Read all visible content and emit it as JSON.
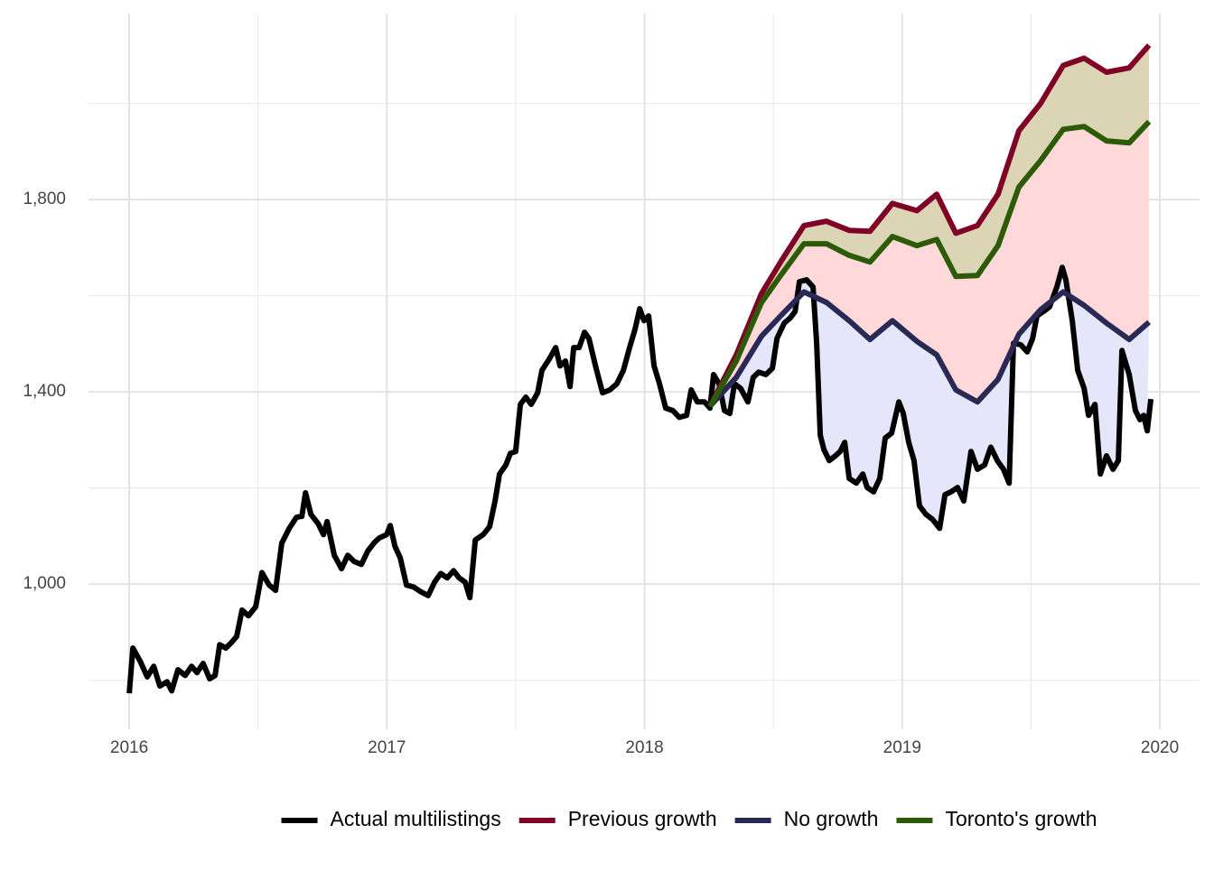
{
  "chart_data": {
    "type": "line",
    "xlim": [
      2015.842,
      2020.154
    ],
    "xticks": [
      2016,
      2017,
      2018,
      2019,
      2020
    ],
    "xminorticks": [
      2016.5,
      2017.5,
      2018.5,
      2019.5
    ],
    "ylim": [
      698,
      2187
    ],
    "yticks": [
      {
        "value": 1000,
        "label": "1,000"
      },
      {
        "value": 1400,
        "label": "1,400"
      },
      {
        "value": 1800,
        "label": "1,800"
      }
    ],
    "yminorticks": [
      800,
      1200,
      1600,
      2000
    ],
    "grid": true,
    "legend": "bottom",
    "series": [
      {
        "name": "Actual multilistings",
        "color": "#000000",
        "x": [
          2016.0,
          2016.014,
          2016.042,
          2016.07,
          2016.095,
          2016.119,
          2016.147,
          2016.165,
          2016.189,
          2016.217,
          2016.242,
          2016.263,
          2016.287,
          2016.312,
          2016.333,
          2016.351,
          2016.375,
          2016.396,
          2016.417,
          2016.438,
          2016.463,
          2016.491,
          2016.515,
          2016.543,
          2016.568,
          2016.592,
          2016.621,
          2016.649,
          2016.67,
          2016.684,
          2016.705,
          2016.733,
          2016.754,
          2016.768,
          2016.796,
          2016.824,
          2016.848,
          2016.873,
          2016.901,
          2016.926,
          2016.954,
          2016.971,
          2016.999,
          2017.013,
          2017.031,
          2017.052,
          2017.076,
          2017.104,
          2017.129,
          2017.16,
          2017.185,
          2017.209,
          2017.234,
          2017.259,
          2017.28,
          2017.304,
          2017.322,
          2017.343,
          2017.374,
          2017.399,
          2017.42,
          2017.437,
          2017.462,
          2017.479,
          2017.5,
          2017.518,
          2017.539,
          2017.56,
          2017.585,
          2017.602,
          2017.63,
          2017.655,
          2017.672,
          2017.693,
          2017.711,
          2017.725,
          2017.746,
          2017.767,
          2017.784,
          2017.812,
          2017.837,
          2017.865,
          2017.893,
          2017.918,
          2017.942,
          2017.963,
          2017.981,
          2017.998,
          2018.016,
          2018.037,
          2018.058,
          2018.082,
          2018.11,
          2018.135,
          2018.163,
          2018.181,
          2018.205,
          2018.233,
          2018.254,
          2018.268,
          2018.289,
          2018.31,
          2018.331,
          2018.349,
          2018.373,
          2018.401,
          2018.422,
          2018.443,
          2018.471,
          2018.496,
          2018.514,
          2018.542,
          2018.566,
          2018.584,
          2018.601,
          2018.629,
          2018.654,
          2018.668,
          2018.682,
          2018.696,
          2018.717,
          2018.741,
          2018.759,
          2018.777,
          2018.794,
          2018.822,
          2018.847,
          2018.864,
          2018.889,
          2018.913,
          2018.934,
          2018.959,
          2018.987,
          2019.004,
          2019.025,
          2019.046,
          2019.067,
          2019.092,
          2019.117,
          2019.145,
          2019.166,
          2019.19,
          2019.215,
          2019.239,
          2019.267,
          2019.292,
          2019.32,
          2019.344,
          2019.369,
          2019.393,
          2019.415,
          2019.432,
          2019.46,
          2019.485,
          2019.506,
          2019.523,
          2019.548,
          2019.572,
          2019.6,
          2019.621,
          2019.635,
          2019.66,
          2019.681,
          2019.706,
          2019.723,
          2019.748,
          2019.769,
          2019.793,
          2019.818,
          2019.839,
          2019.853,
          2019.881,
          2019.905,
          2019.923,
          2019.937,
          2019.951,
          2019.965
        ],
        "values": [
          773,
          867,
          840,
          807,
          829,
          788,
          797,
          778,
          822,
          810,
          829,
          816,
          835,
          803,
          810,
          874,
          867,
          878,
          891,
          946,
          934,
          953,
          1024,
          998,
          987,
          1085,
          1116,
          1139,
          1141,
          1190,
          1145,
          1126,
          1103,
          1130,
          1060,
          1032,
          1060,
          1047,
          1041,
          1069,
          1088,
          1096,
          1103,
          1122,
          1079,
          1054,
          998,
          994,
          985,
          976,
          1004,
          1022,
          1013,
          1028,
          1013,
          1004,
          972,
          1092,
          1103,
          1120,
          1173,
          1229,
          1248,
          1272,
          1276,
          1374,
          1389,
          1374,
          1398,
          1445,
          1468,
          1492,
          1454,
          1464,
          1411,
          1492,
          1492,
          1524,
          1511,
          1449,
          1398,
          1404,
          1417,
          1445,
          1492,
          1530,
          1573,
          1548,
          1558,
          1454,
          1417,
          1366,
          1361,
          1347,
          1351,
          1404,
          1379,
          1379,
          1366,
          1436,
          1417,
          1361,
          1355,
          1417,
          1407,
          1379,
          1430,
          1441,
          1436,
          1449,
          1511,
          1543,
          1554,
          1567,
          1629,
          1633,
          1618,
          1501,
          1310,
          1280,
          1257,
          1267,
          1276,
          1295,
          1220,
          1210,
          1229,
          1201,
          1192,
          1220,
          1304,
          1314,
          1379,
          1355,
          1295,
          1257,
          1163,
          1145,
          1135,
          1116,
          1186,
          1192,
          1201,
          1173,
          1276,
          1239,
          1248,
          1285,
          1257,
          1239,
          1210,
          1501,
          1498,
          1483,
          1511,
          1558,
          1567,
          1577,
          1618,
          1659,
          1633,
          1548,
          1445,
          1407,
          1351,
          1374,
          1229,
          1267,
          1239,
          1257,
          1486,
          1436,
          1361,
          1342,
          1351,
          1319,
          1385
        ]
      },
      {
        "name": "Previous growth",
        "color": "#800026",
        "fill": "#dbd4b5",
        "x": [
          2018.254,
          2018.356,
          2018.454,
          2018.528,
          2018.619,
          2018.706,
          2018.794,
          2018.875,
          2018.962,
          2019.057,
          2019.134,
          2019.208,
          2019.292,
          2019.372,
          2019.453,
          2019.537,
          2019.625,
          2019.706,
          2019.793,
          2019.881,
          2019.958
        ],
        "values": [
          1370,
          1477,
          1605,
          1670,
          1746,
          1755,
          1736,
          1734,
          1792,
          1777,
          1811,
          1730,
          1746,
          1811,
          1943,
          2000,
          2079,
          2094,
          2065,
          2074,
          2121
        ]
      },
      {
        "name": "No growth",
        "color": "#2a2955",
        "fill": "#e6e6fb",
        "x": [
          2018.254,
          2018.356,
          2018.454,
          2018.528,
          2018.619,
          2018.706,
          2018.794,
          2018.875,
          2018.962,
          2019.057,
          2019.134,
          2019.208,
          2019.292,
          2019.372,
          2019.453,
          2019.537,
          2019.625,
          2019.706,
          2019.793,
          2019.881,
          2019.958
        ],
        "values": [
          1370,
          1430,
          1516,
          1558,
          1608,
          1586,
          1548,
          1509,
          1548,
          1505,
          1477,
          1404,
          1379,
          1426,
          1520,
          1571,
          1608,
          1580,
          1543,
          1509,
          1545
        ]
      },
      {
        "name": "Toronto's growth",
        "color": "#2d5a07",
        "fill": "#ffd9d9",
        "x": [
          2018.254,
          2018.356,
          2018.454,
          2018.528,
          2018.619,
          2018.706,
          2018.794,
          2018.875,
          2018.962,
          2019.057,
          2019.134,
          2019.208,
          2019.292,
          2019.372,
          2019.453,
          2019.537,
          2019.625,
          2019.706,
          2019.793,
          2019.881,
          2019.958
        ],
        "values": [
          1370,
          1464,
          1586,
          1642,
          1708,
          1708,
          1684,
          1670,
          1723,
          1704,
          1717,
          1640,
          1642,
          1704,
          1826,
          1881,
          1946,
          1952,
          1922,
          1918,
          1962
        ]
      }
    ]
  }
}
